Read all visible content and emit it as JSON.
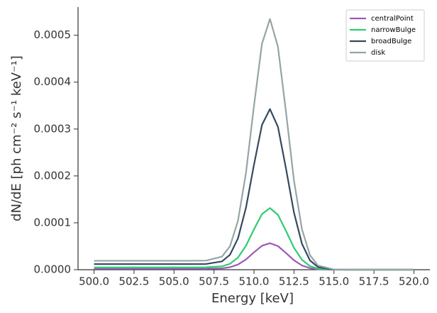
{
  "chart_data": {
    "type": "line",
    "xlabel": "Energy [keV]",
    "ylabel": "dN/dE [ph cm⁻² s⁻¹ keV⁻¹]",
    "x": [
      500,
      502,
      504,
      506,
      507,
      508,
      508.5,
      509,
      509.5,
      510,
      510.5,
      511,
      511.5,
      512,
      512.5,
      513,
      513.5,
      514,
      515,
      516,
      518,
      520
    ],
    "series": [
      {
        "name": "centralPoint",
        "color": "#9b59b6",
        "values": [
          2e-06,
          2e-06,
          2e-06,
          2e-06,
          2e-06,
          2.9e-06,
          5.3e-06,
          1.1e-05,
          2.19e-05,
          3.7e-05,
          5.1e-05,
          5.66e-05,
          5.03e-05,
          3.57e-05,
          2.02e-05,
          9.1e-06,
          3.3e-06,
          9e-07,
          0,
          0,
          0,
          0
        ]
      },
      {
        "name": "narrowBulge",
        "color": "#2ecc71",
        "values": [
          5e-06,
          5e-06,
          5e-06,
          5e-06,
          5.1e-06,
          7.2e-06,
          1.26e-05,
          2.6e-05,
          5.11e-05,
          8.61e-05,
          0.0001186,
          0.0001315,
          0.0001169,
          8.29e-05,
          4.68e-05,
          2.12e-05,
          7.6e-06,
          2.2e-06,
          1e-07,
          0,
          0,
          0
        ]
      },
      {
        "name": "broadBulge",
        "color": "#34495e",
        "values": [
          1.2e-05,
          1.2e-05,
          1.2e-05,
          1.2e-05,
          1.22e-05,
          1.77e-05,
          3.19e-05,
          6.67e-05,
          0.0001322,
          0.0002237,
          0.0003087,
          0.0003426,
          0.0003045,
          0.0002159,
          0.000122,
          5.53e-05,
          1.99e-05,
          5.7e-06,
          2e-07,
          0,
          0,
          0
        ]
      },
      {
        "name": "disk",
        "color": "#95a5a6",
        "values": [
          1.9e-05,
          1.9e-05,
          1.9e-05,
          1.9e-05,
          1.94e-05,
          2.79e-05,
          5.01e-05,
          0.0001043,
          0.0002066,
          0.0003492,
          0.0004819,
          0.0005347,
          0.0004753,
          0.0003369,
          0.0001904,
          8.62e-05,
          3.11e-05,
          8.9e-06,
          4e-07,
          0,
          0,
          0
        ]
      }
    ],
    "xlim": [
      499,
      521
    ],
    "ylim": [
      0,
      0.00056
    ],
    "xticks": [
      {
        "value": 500,
        "label": "500.0"
      },
      {
        "value": 502.5,
        "label": "502.5"
      },
      {
        "value": 505,
        "label": "505.0"
      },
      {
        "value": 507.5,
        "label": "507.5"
      },
      {
        "value": 510,
        "label": "510.0"
      },
      {
        "value": 512.5,
        "label": "512.5"
      },
      {
        "value": 515,
        "label": "515.0"
      },
      {
        "value": 517.5,
        "label": "517.5"
      },
      {
        "value": 520,
        "label": "520.0"
      }
    ],
    "yticks": [
      {
        "value": 0,
        "label": "0.0000"
      },
      {
        "value": 0.0001,
        "label": "0.0001"
      },
      {
        "value": 0.0002,
        "label": "0.0002"
      },
      {
        "value": 0.0003,
        "label": "0.0003"
      },
      {
        "value": 0.0004,
        "label": "0.0004"
      },
      {
        "value": 0.0005,
        "label": "0.0005"
      }
    ],
    "legend": "upper right"
  }
}
